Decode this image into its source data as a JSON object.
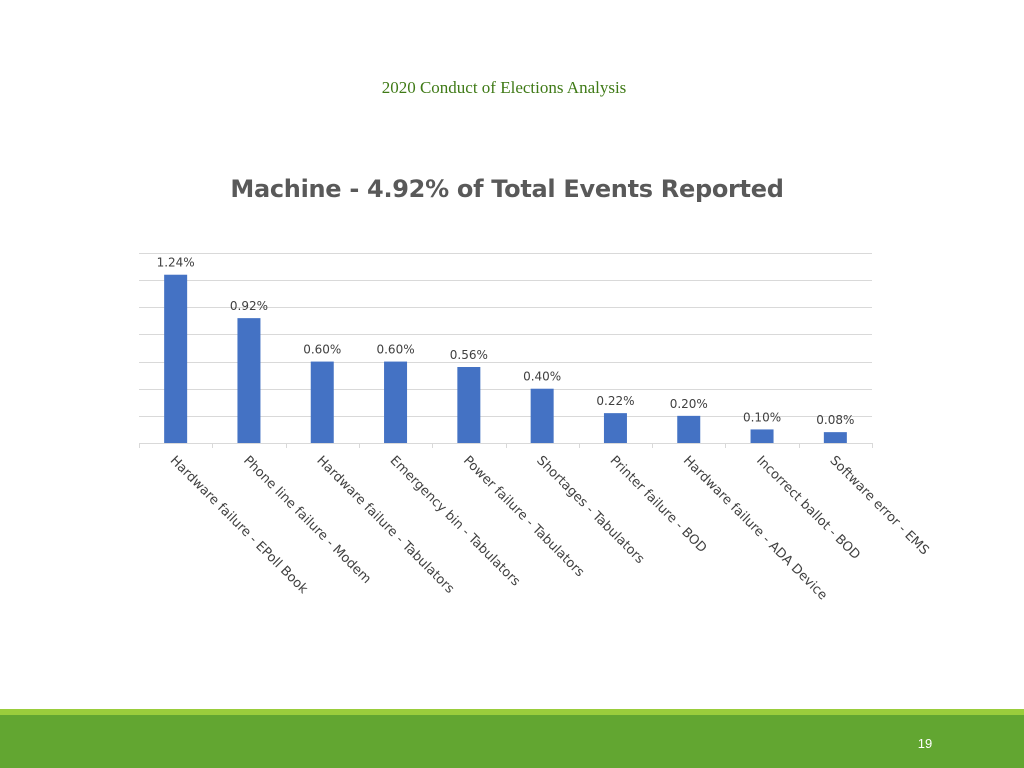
{
  "slide": {
    "header": "2020 Conduct of Elections Analysis",
    "page_number": "19"
  },
  "colors": {
    "header_text": "#3f7a16",
    "bar": "#4472c4",
    "grid": "#d9d9d9",
    "label_text": "#404040",
    "footer_stripe": "#9acd3c",
    "footer_band": "#62a631"
  },
  "chart_data": {
    "type": "bar",
    "title": "Machine - 4.92% of Total Events Reported",
    "xlabel": "",
    "ylabel": "",
    "categories": [
      "Hardware failure - EPoll Book",
      "Phone line failure - Modem",
      "Hardware failure - Tabulators",
      "Emergency bin - Tabulators",
      "Power failure - Tabulators",
      "Shortages - Tabulators",
      "Printer failure - BOD",
      "Hardware failure - ADA Device",
      "Incorrect ballot - BOD",
      "Software error - EMS"
    ],
    "values": [
      1.24,
      0.92,
      0.6,
      0.6,
      0.56,
      0.4,
      0.22,
      0.2,
      0.1,
      0.08
    ],
    "data_labels": [
      "1.24%",
      "0.92%",
      "0.60%",
      "0.60%",
      "0.56%",
      "0.40%",
      "0.22%",
      "0.20%",
      "0.10%",
      "0.08%"
    ],
    "ylim": [
      0,
      1.4
    ],
    "grid": true,
    "legend": "none"
  }
}
